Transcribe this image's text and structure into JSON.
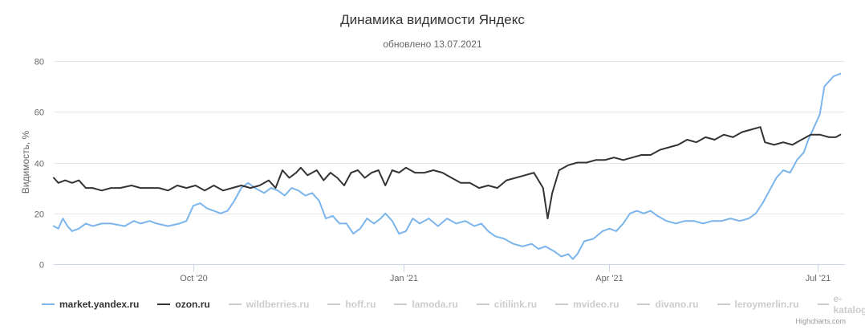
{
  "title": "Динамика видимости Яндекс",
  "subtitle": "обновлено 13.07.2021",
  "credits": "Highcharts.com",
  "chart_data": {
    "type": "line",
    "title": "Динамика видимости Яндекс",
    "subtitle": "обновлено 13.07.2021",
    "ylabel": "Видимость, %",
    "xlabel": "",
    "ylim": [
      0,
      80
    ],
    "yticks": [
      0,
      20,
      40,
      60,
      80
    ],
    "xlim": [
      "2020-08-01",
      "2021-07-13"
    ],
    "xticks": [
      {
        "date": "2020-10-01",
        "label": "Oct '20"
      },
      {
        "date": "2021-01-01",
        "label": "Jan '21"
      },
      {
        "date": "2021-04-01",
        "label": "Apr '21"
      },
      {
        "date": "2021-07-01",
        "label": "Jul '21"
      }
    ],
    "grid": "horizontal",
    "legend_position": "bottom-left",
    "series": [
      {
        "name": "market.yandex.ru",
        "color": "#7cb5ec",
        "visible": true,
        "points": [
          [
            "2020-08-01",
            15
          ],
          [
            "2020-08-03",
            14
          ],
          [
            "2020-08-05",
            18
          ],
          [
            "2020-08-07",
            15
          ],
          [
            "2020-08-09",
            13
          ],
          [
            "2020-08-12",
            14
          ],
          [
            "2020-08-15",
            16
          ],
          [
            "2020-08-18",
            15
          ],
          [
            "2020-08-22",
            16
          ],
          [
            "2020-08-26",
            16
          ],
          [
            "2020-09-01",
            15
          ],
          [
            "2020-09-05",
            17
          ],
          [
            "2020-09-08",
            16
          ],
          [
            "2020-09-12",
            17
          ],
          [
            "2020-09-15",
            16
          ],
          [
            "2020-09-20",
            15
          ],
          [
            "2020-09-25",
            16
          ],
          [
            "2020-09-28",
            17
          ],
          [
            "2020-10-01",
            23
          ],
          [
            "2020-10-04",
            24
          ],
          [
            "2020-10-07",
            22
          ],
          [
            "2020-10-10",
            21
          ],
          [
            "2020-10-13",
            20
          ],
          [
            "2020-10-16",
            21
          ],
          [
            "2020-10-19",
            25
          ],
          [
            "2020-10-22",
            30
          ],
          [
            "2020-10-25",
            32
          ],
          [
            "2020-10-28",
            30
          ],
          [
            "2020-11-01",
            28
          ],
          [
            "2020-11-04",
            30
          ],
          [
            "2020-11-07",
            29
          ],
          [
            "2020-11-10",
            27
          ],
          [
            "2020-11-13",
            30
          ],
          [
            "2020-11-16",
            29
          ],
          [
            "2020-11-19",
            27
          ],
          [
            "2020-11-22",
            28
          ],
          [
            "2020-11-25",
            25
          ],
          [
            "2020-11-28",
            18
          ],
          [
            "2020-12-01",
            19
          ],
          [
            "2020-12-04",
            16
          ],
          [
            "2020-12-07",
            16
          ],
          [
            "2020-12-10",
            12
          ],
          [
            "2020-12-13",
            14
          ],
          [
            "2020-12-16",
            18
          ],
          [
            "2020-12-19",
            16
          ],
          [
            "2020-12-22",
            18
          ],
          [
            "2020-12-24",
            20
          ],
          [
            "2020-12-27",
            17
          ],
          [
            "2020-12-30",
            12
          ],
          [
            "2021-01-02",
            13
          ],
          [
            "2021-01-05",
            18
          ],
          [
            "2021-01-08",
            16
          ],
          [
            "2021-01-12",
            18
          ],
          [
            "2021-01-16",
            15
          ],
          [
            "2021-01-20",
            18
          ],
          [
            "2021-01-24",
            16
          ],
          [
            "2021-01-28",
            17
          ],
          [
            "2021-02-01",
            15
          ],
          [
            "2021-02-04",
            16
          ],
          [
            "2021-02-07",
            13
          ],
          [
            "2021-02-10",
            11
          ],
          [
            "2021-02-14",
            10
          ],
          [
            "2021-02-18",
            8
          ],
          [
            "2021-02-22",
            7
          ],
          [
            "2021-02-26",
            8
          ],
          [
            "2021-03-01",
            6
          ],
          [
            "2021-03-04",
            7
          ],
          [
            "2021-03-08",
            5
          ],
          [
            "2021-03-11",
            3
          ],
          [
            "2021-03-14",
            4
          ],
          [
            "2021-03-16",
            2
          ],
          [
            "2021-03-18",
            4
          ],
          [
            "2021-03-21",
            9
          ],
          [
            "2021-03-25",
            10
          ],
          [
            "2021-03-29",
            13
          ],
          [
            "2021-04-01",
            14
          ],
          [
            "2021-04-04",
            13
          ],
          [
            "2021-04-07",
            16
          ],
          [
            "2021-04-10",
            20
          ],
          [
            "2021-04-13",
            21
          ],
          [
            "2021-04-16",
            20
          ],
          [
            "2021-04-19",
            21
          ],
          [
            "2021-04-22",
            19
          ],
          [
            "2021-04-26",
            17
          ],
          [
            "2021-04-30",
            16
          ],
          [
            "2021-05-04",
            17
          ],
          [
            "2021-05-08",
            17
          ],
          [
            "2021-05-12",
            16
          ],
          [
            "2021-05-16",
            17
          ],
          [
            "2021-05-20",
            17
          ],
          [
            "2021-05-24",
            18
          ],
          [
            "2021-05-28",
            17
          ],
          [
            "2021-06-01",
            18
          ],
          [
            "2021-06-04",
            20
          ],
          [
            "2021-06-07",
            24
          ],
          [
            "2021-06-10",
            29
          ],
          [
            "2021-06-13",
            34
          ],
          [
            "2021-06-16",
            37
          ],
          [
            "2021-06-19",
            36
          ],
          [
            "2021-06-22",
            41
          ],
          [
            "2021-06-25",
            44
          ],
          [
            "2021-06-27",
            49
          ],
          [
            "2021-06-30",
            55
          ],
          [
            "2021-07-02",
            59
          ],
          [
            "2021-07-04",
            70
          ],
          [
            "2021-07-06",
            72
          ],
          [
            "2021-07-08",
            74
          ],
          [
            "2021-07-11",
            75
          ]
        ]
      },
      {
        "name": "ozon.ru",
        "color": "#333333",
        "visible": true,
        "points": [
          [
            "2020-08-01",
            34
          ],
          [
            "2020-08-03",
            32
          ],
          [
            "2020-08-06",
            33
          ],
          [
            "2020-08-09",
            32
          ],
          [
            "2020-08-12",
            33
          ],
          [
            "2020-08-15",
            30
          ],
          [
            "2020-08-18",
            30
          ],
          [
            "2020-08-22",
            29
          ],
          [
            "2020-08-26",
            30
          ],
          [
            "2020-08-30",
            30
          ],
          [
            "2020-09-04",
            31
          ],
          [
            "2020-09-08",
            30
          ],
          [
            "2020-09-12",
            30
          ],
          [
            "2020-09-16",
            30
          ],
          [
            "2020-09-20",
            29
          ],
          [
            "2020-09-24",
            31
          ],
          [
            "2020-09-28",
            30
          ],
          [
            "2020-10-02",
            31
          ],
          [
            "2020-10-06",
            29
          ],
          [
            "2020-10-10",
            31
          ],
          [
            "2020-10-14",
            29
          ],
          [
            "2020-10-18",
            30
          ],
          [
            "2020-10-22",
            31
          ],
          [
            "2020-10-26",
            30
          ],
          [
            "2020-10-30",
            31
          ],
          [
            "2020-11-03",
            33
          ],
          [
            "2020-11-06",
            30
          ],
          [
            "2020-11-09",
            37
          ],
          [
            "2020-11-12",
            34
          ],
          [
            "2020-11-15",
            36
          ],
          [
            "2020-11-17",
            38
          ],
          [
            "2020-11-20",
            35
          ],
          [
            "2020-11-24",
            37
          ],
          [
            "2020-11-27",
            33
          ],
          [
            "2020-11-30",
            36
          ],
          [
            "2020-12-03",
            34
          ],
          [
            "2020-12-06",
            31
          ],
          [
            "2020-12-09",
            36
          ],
          [
            "2020-12-12",
            37
          ],
          [
            "2020-12-15",
            34
          ],
          [
            "2020-12-18",
            36
          ],
          [
            "2020-12-21",
            37
          ],
          [
            "2020-12-24",
            31
          ],
          [
            "2020-12-27",
            37
          ],
          [
            "2020-12-30",
            36
          ],
          [
            "2021-01-02",
            38
          ],
          [
            "2021-01-06",
            36
          ],
          [
            "2021-01-10",
            36
          ],
          [
            "2021-01-14",
            37
          ],
          [
            "2021-01-18",
            36
          ],
          [
            "2021-01-22",
            34
          ],
          [
            "2021-01-26",
            32
          ],
          [
            "2021-01-30",
            32
          ],
          [
            "2021-02-03",
            30
          ],
          [
            "2021-02-07",
            31
          ],
          [
            "2021-02-11",
            30
          ],
          [
            "2021-02-15",
            33
          ],
          [
            "2021-02-19",
            34
          ],
          [
            "2021-02-23",
            35
          ],
          [
            "2021-02-27",
            36
          ],
          [
            "2021-03-01",
            33
          ],
          [
            "2021-03-03",
            30
          ],
          [
            "2021-03-05",
            18
          ],
          [
            "2021-03-07",
            28
          ],
          [
            "2021-03-10",
            37
          ],
          [
            "2021-03-14",
            39
          ],
          [
            "2021-03-18",
            40
          ],
          [
            "2021-03-22",
            40
          ],
          [
            "2021-03-26",
            41
          ],
          [
            "2021-03-30",
            41
          ],
          [
            "2021-04-03",
            42
          ],
          [
            "2021-04-07",
            41
          ],
          [
            "2021-04-11",
            42
          ],
          [
            "2021-04-15",
            43
          ],
          [
            "2021-04-19",
            43
          ],
          [
            "2021-04-23",
            45
          ],
          [
            "2021-04-27",
            46
          ],
          [
            "2021-05-01",
            47
          ],
          [
            "2021-05-05",
            49
          ],
          [
            "2021-05-09",
            48
          ],
          [
            "2021-05-13",
            50
          ],
          [
            "2021-05-17",
            49
          ],
          [
            "2021-05-21",
            51
          ],
          [
            "2021-05-25",
            50
          ],
          [
            "2021-05-29",
            52
          ],
          [
            "2021-06-02",
            53
          ],
          [
            "2021-06-06",
            54
          ],
          [
            "2021-06-08",
            48
          ],
          [
            "2021-06-12",
            47
          ],
          [
            "2021-06-16",
            48
          ],
          [
            "2021-06-20",
            47
          ],
          [
            "2021-06-24",
            49
          ],
          [
            "2021-06-28",
            51
          ],
          [
            "2021-07-02",
            51
          ],
          [
            "2021-07-06",
            50
          ],
          [
            "2021-07-09",
            50
          ],
          [
            "2021-07-11",
            51
          ]
        ]
      }
    ],
    "legend": [
      {
        "name": "market.yandex.ru",
        "color": "#7cb5ec",
        "visible": true
      },
      {
        "name": "ozon.ru",
        "color": "#333333",
        "visible": true
      },
      {
        "name": "wildberries.ru",
        "color": "#cccccc",
        "visible": false
      },
      {
        "name": "hoff.ru",
        "color": "#cccccc",
        "visible": false
      },
      {
        "name": "lamoda.ru",
        "color": "#cccccc",
        "visible": false
      },
      {
        "name": "citilink.ru",
        "color": "#cccccc",
        "visible": false
      },
      {
        "name": "mvideo.ru",
        "color": "#cccccc",
        "visible": false
      },
      {
        "name": "divano.ru",
        "color": "#cccccc",
        "visible": false
      },
      {
        "name": "leroymerlin.ru",
        "color": "#cccccc",
        "visible": false
      },
      {
        "name": "e-katalog.ru",
        "color": "#cccccc",
        "visible": false
      }
    ]
  }
}
